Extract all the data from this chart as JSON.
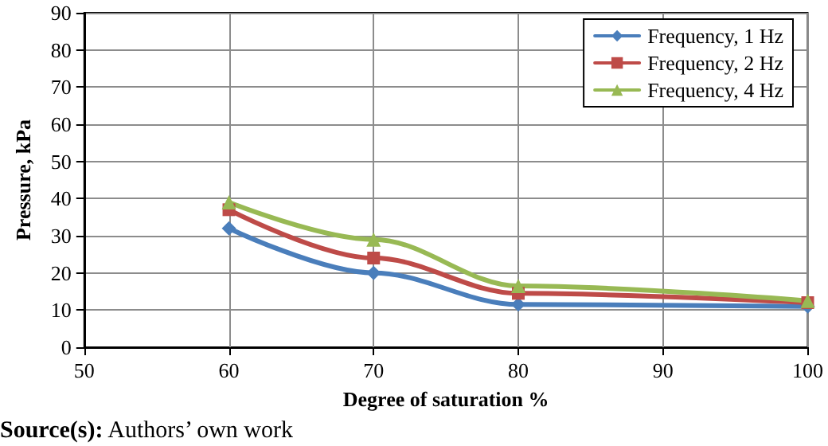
{
  "chart_data": {
    "type": "line",
    "xlabel": "Degree of saturation %",
    "ylabel": "Pressure, kPa",
    "annotations": [
      "Source(s): Authors’ own work"
    ],
    "series": [
      {
        "name": "Frequency, 1 Hz",
        "color": "#4a7ebb",
        "marker": "diamond",
        "x": [
          60,
          70,
          80,
          100
        ],
        "values": [
          32,
          20,
          11.5,
          11
        ]
      },
      {
        "name": "Frequency, 2 Hz",
        "color": "#be4b48",
        "marker": "square",
        "x": [
          60,
          70,
          80,
          100
        ],
        "values": [
          37,
          24,
          14.5,
          12
        ]
      },
      {
        "name": "Frequency, 4 Hz",
        "color": "#98b954",
        "marker": "triangle",
        "x": [
          60,
          70,
          80,
          100
        ],
        "values": [
          39,
          29,
          16.5,
          12.5
        ]
      }
    ],
    "xlim": [
      50,
      100
    ],
    "xticks": [
      50,
      60,
      70,
      80,
      90,
      100
    ],
    "ylim": [
      0,
      90
    ],
    "yticks": [
      0,
      10,
      20,
      30,
      40,
      50,
      60,
      70,
      80,
      90
    ],
    "grid": true,
    "legend": "top right"
  }
}
